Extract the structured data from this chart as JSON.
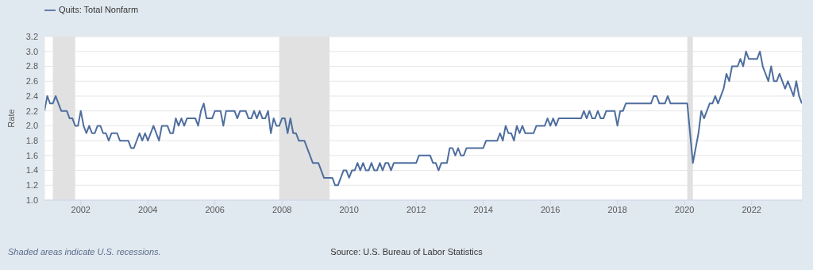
{
  "chart_data": {
    "type": "line",
    "ylabel": "Rate",
    "x": [
      "2000-12",
      "2001-01",
      "2001-02",
      "2001-03",
      "2001-04",
      "2001-06",
      "2001-08",
      "2001-09",
      "2001-10",
      "2001-11",
      "2001-12",
      "2002-01",
      "2002-02",
      "2002-03",
      "2002-04",
      "2002-05",
      "2002-06",
      "2002-07",
      "2002-08",
      "2002-09",
      "2002-10",
      "2002-11",
      "2002-12",
      "2003-02",
      "2003-03",
      "2003-06",
      "2003-07",
      "2003-08",
      "2003-10",
      "2003-11",
      "2003-12",
      "2004-01",
      "2004-03",
      "2004-05",
      "2004-06",
      "2004-08",
      "2004-09",
      "2004-10",
      "2004-11",
      "2004-12",
      "2005-01",
      "2005-02",
      "2005-03",
      "2005-06",
      "2005-07",
      "2005-08",
      "2005-09",
      "2005-10",
      "2005-12",
      "2006-01",
      "2006-03",
      "2006-04",
      "2006-05",
      "2006-08",
      "2006-09",
      "2006-10",
      "2006-12",
      "2007-01",
      "2007-02",
      "2007-03",
      "2007-04",
      "2007-05",
      "2007-06",
      "2007-07",
      "2007-08",
      "2007-09",
      "2007-10",
      "2007-11",
      "2007-12",
      "2008-01",
      "2008-02",
      "2008-03",
      "2008-04",
      "2008-05",
      "2008-06",
      "2008-07",
      "2008-09",
      "2008-12",
      "2009-02",
      "2009-04",
      "2009-07",
      "2009-08",
      "2009-09",
      "2009-11",
      "2009-12",
      "2010-01",
      "2010-02",
      "2010-03",
      "2010-04",
      "2010-05",
      "2010-06",
      "2010-07",
      "2010-08",
      "2010-09",
      "2010-10",
      "2010-11",
      "2010-12",
      "2011-01",
      "2011-02",
      "2011-03",
      "2011-04",
      "2011-05",
      "2012-01",
      "2012-02",
      "2012-06",
      "2012-07",
      "2012-08",
      "2012-09",
      "2012-10",
      "2012-12",
      "2013-01",
      "2013-02",
      "2013-03",
      "2013-04",
      "2013-05",
      "2013-06",
      "2013-07",
      "2014-01",
      "2014-02",
      "2014-06",
      "2014-07",
      "2014-08",
      "2014-09",
      "2014-10",
      "2014-11",
      "2014-12",
      "2015-01",
      "2015-02",
      "2015-03",
      "2015-04",
      "2015-07",
      "2015-08",
      "2015-11",
      "2015-12",
      "2016-01",
      "2016-02",
      "2016-03",
      "2016-04",
      "2016-12",
      "2017-01",
      "2017-02",
      "2017-03",
      "2017-04",
      "2017-05",
      "2017-06",
      "2017-07",
      "2017-08",
      "2017-09",
      "2017-12",
      "2018-01",
      "2018-02",
      "2018-03",
      "2018-04",
      "2019-01",
      "2019-02",
      "2019-03",
      "2019-04",
      "2019-06",
      "2019-07",
      "2019-08",
      "2020-02",
      "2020-04",
      "2020-05",
      "2020-06",
      "2020-07",
      "2020-08",
      "2020-10",
      "2020-11",
      "2020-12",
      "2021-01",
      "2021-03",
      "2021-04",
      "2021-05",
      "2021-06",
      "2021-08",
      "2021-09",
      "2021-10",
      "2021-11",
      "2021-12",
      "2022-03",
      "2022-04",
      "2022-05",
      "2022-07",
      "2022-08",
      "2022-09",
      "2022-10",
      "2022-11",
      "2023-01",
      "2023-02",
      "2023-04",
      "2023-05",
      "2023-06",
      "2023-07"
    ],
    "series": [
      {
        "name": "Quits: Total Nonfarm",
        "color": "#4e6e9e",
        "values": [
          2.2,
          2.4,
          2.3,
          2.3,
          2.4,
          2.2,
          2.2,
          2.1,
          2.1,
          2.0,
          2.0,
          2.2,
          2.0,
          1.9,
          2.0,
          1.9,
          1.9,
          2.0,
          2.0,
          1.9,
          1.9,
          1.8,
          1.9,
          1.9,
          1.8,
          1.8,
          1.7,
          1.7,
          1.9,
          1.8,
          1.9,
          1.8,
          2.0,
          1.8,
          2.0,
          2.0,
          1.9,
          1.9,
          2.1,
          2.0,
          2.1,
          2.0,
          2.1,
          2.1,
          2.0,
          2.2,
          2.3,
          2.1,
          2.1,
          2.2,
          2.2,
          2.0,
          2.2,
          2.2,
          2.1,
          2.2,
          2.2,
          2.1,
          2.1,
          2.2,
          2.1,
          2.2,
          2.1,
          2.1,
          2.2,
          1.9,
          2.1,
          2.0,
          2.0,
          2.1,
          2.1,
          1.9,
          2.1,
          1.9,
          1.9,
          1.8,
          1.8,
          1.5,
          1.5,
          1.3,
          1.3,
          1.2,
          1.2,
          1.4,
          1.4,
          1.3,
          1.4,
          1.4,
          1.5,
          1.4,
          1.5,
          1.4,
          1.4,
          1.5,
          1.4,
          1.4,
          1.5,
          1.4,
          1.5,
          1.5,
          1.4,
          1.5,
          1.5,
          1.6,
          1.6,
          1.5,
          1.5,
          1.4,
          1.5,
          1.5,
          1.7,
          1.7,
          1.6,
          1.7,
          1.6,
          1.6,
          1.7,
          1.7,
          1.8,
          1.8,
          1.9,
          1.8,
          2.0,
          1.9,
          1.9,
          1.8,
          2.0,
          1.9,
          2.0,
          1.9,
          1.9,
          2.0,
          2.0,
          2.1,
          2.0,
          2.1,
          2.0,
          2.1,
          2.1,
          2.2,
          2.1,
          2.2,
          2.1,
          2.1,
          2.2,
          2.1,
          2.1,
          2.2,
          2.2,
          2.0,
          2.2,
          2.2,
          2.3,
          2.3,
          2.4,
          2.4,
          2.3,
          2.3,
          2.4,
          2.3,
          2.3,
          1.5,
          1.7,
          1.9,
          2.2,
          2.1,
          2.3,
          2.3,
          2.4,
          2.3,
          2.5,
          2.7,
          2.6,
          2.8,
          2.8,
          2.9,
          2.8,
          3.0,
          2.9,
          2.9,
          3.0,
          2.8,
          2.6,
          2.8,
          2.6,
          2.6,
          2.7,
          2.5,
          2.6,
          2.4,
          2.6,
          2.4,
          2.3
        ]
      }
    ],
    "xlim": [
      "2000-12",
      "2023-07"
    ],
    "xticks": [
      "2002",
      "2004",
      "2006",
      "2008",
      "2010",
      "2012",
      "2014",
      "2016",
      "2018",
      "2020",
      "2022"
    ],
    "ylim": [
      1.0,
      3.2
    ],
    "yticks": [
      {
        "value": 1.0,
        "label": "1.0"
      },
      {
        "value": 1.2,
        "label": "1.2"
      },
      {
        "value": 1.4,
        "label": "1.4"
      },
      {
        "value": 1.6,
        "label": "1.6"
      },
      {
        "value": 1.8,
        "label": "1.8"
      },
      {
        "value": 2.0,
        "label": "2.0"
      },
      {
        "value": 2.2,
        "label": "2.2"
      },
      {
        "value": 2.4,
        "label": "2.4"
      },
      {
        "value": 2.6,
        "label": "2.6"
      },
      {
        "value": 2.8,
        "label": "2.8"
      },
      {
        "value": 3.0,
        "label": "3.0"
      },
      {
        "value": 3.2,
        "label": "3.2"
      }
    ],
    "bands": [
      {
        "axis": "x",
        "from": "2001-03",
        "to": "2001-11",
        "color": "#e1e1e1"
      },
      {
        "axis": "x",
        "from": "2007-12",
        "to": "2009-06",
        "color": "#e1e1e1"
      },
      {
        "axis": "x",
        "from": "2020-02",
        "to": "2020-04",
        "color": "#e1e1e1"
      }
    ],
    "grid": "y",
    "legend": "top left",
    "annotations": [
      "Shaded areas indicate U.S. recessions.",
      "Source: U.S. Bureau of Labor Statistics"
    ]
  }
}
